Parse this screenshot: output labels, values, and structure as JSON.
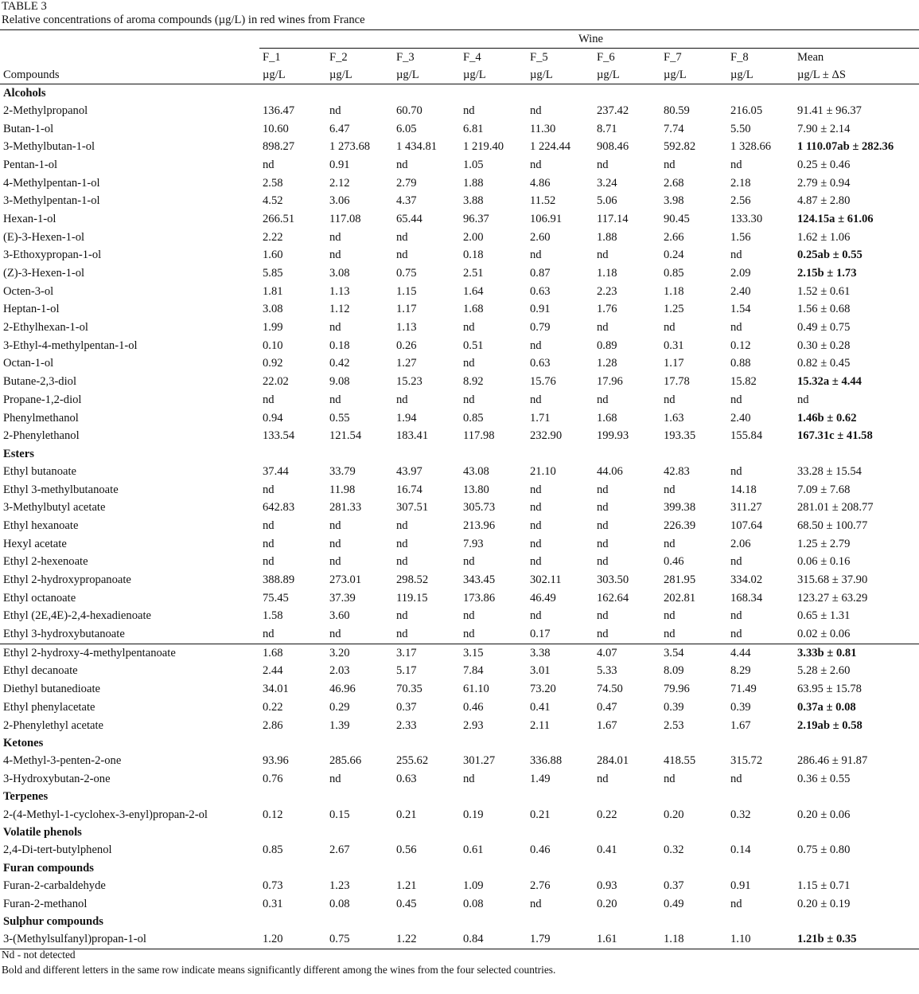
{
  "caption": {
    "label": "TABLE 3",
    "title": "Relative concentrations of aroma compounds (µg/L) in red wines from France"
  },
  "header": {
    "group_label": "Wine",
    "compounds_label": "Compounds",
    "columns": [
      "F_1",
      "F_2",
      "F_3",
      "F_4",
      "F_5",
      "F_6",
      "F_7",
      "F_8",
      "Mean"
    ],
    "units": [
      "µg/L",
      "µg/L",
      "µg/L",
      "µg/L",
      "µg/L",
      "µg/L",
      "µg/L",
      "µg/L",
      "µg/L ± ΔS"
    ]
  },
  "groups": [
    {
      "name": "Alcohols",
      "rows": [
        {
          "compound": "2-Methylpropanol",
          "values": [
            "136.47",
            "nd",
            "60.70",
            "nd",
            "nd",
            "237.42",
            "80.59",
            "216.05"
          ],
          "mean": "91.41 ± 96.37",
          "bold": false
        },
        {
          "compound": "Butan-1-ol",
          "values": [
            "10.60",
            "6.47",
            "6.05",
            "6.81",
            "11.30",
            "8.71",
            "7.74",
            "5.50"
          ],
          "mean": "7.90 ± 2.14",
          "bold": false
        },
        {
          "compound": "3-Methylbutan-1-ol",
          "values": [
            "898.27",
            "1 273.68",
            "1 434.81",
            "1 219.40",
            "1 224.44",
            "908.46",
            "592.82",
            "1 328.66"
          ],
          "mean": "1 110.07ab ± 282.36",
          "bold": true
        },
        {
          "compound": "Pentan-1-ol",
          "values": [
            "nd",
            "0.91",
            "nd",
            "1.05",
            "nd",
            "nd",
            "nd",
            "nd"
          ],
          "mean": "0.25 ± 0.46",
          "bold": false
        },
        {
          "compound": "4-Methylpentan-1-ol",
          "values": [
            "2.58",
            "2.12",
            "2.79",
            "1.88",
            "4.86",
            "3.24",
            "2.68",
            "2.18"
          ],
          "mean": "2.79 ± 0.94",
          "bold": false
        },
        {
          "compound": "3-Methylpentan-1-ol",
          "values": [
            "4.52",
            "3.06",
            "4.37",
            "3.88",
            "11.52",
            "5.06",
            "3.98",
            "2.56"
          ],
          "mean": "4.87 ± 2.80",
          "bold": false
        },
        {
          "compound": "Hexan-1-ol",
          "values": [
            "266.51",
            "117.08",
            "65.44",
            "96.37",
            "106.91",
            "117.14",
            "90.45",
            "133.30"
          ],
          "mean": "124.15a ± 61.06",
          "bold": true
        },
        {
          "compound": "(E)-3-Hexen-1-ol",
          "values": [
            "2.22",
            "nd",
            "nd",
            "2.00",
            "2.60",
            "1.88",
            "2.66",
            "1.56"
          ],
          "mean": "1.62 ± 1.06",
          "bold": false
        },
        {
          "compound": "3-Ethoxypropan-1-ol",
          "values": [
            "1.60",
            "nd",
            "nd",
            "0.18",
            "nd",
            "nd",
            "0.24",
            "nd"
          ],
          "mean": "0.25ab ± 0.55",
          "bold": true
        },
        {
          "compound": "(Z)-3-Hexen-1-ol",
          "values": [
            "5.85",
            "3.08",
            "0.75",
            "2.51",
            "0.87",
            "1.18",
            "0.85",
            "2.09"
          ],
          "mean": "2.15b ± 1.73",
          "bold": true
        },
        {
          "compound": "Octen-3-ol",
          "values": [
            "1.81",
            "1.13",
            "1.15",
            "1.64",
            "0.63",
            "2.23",
            "1.18",
            "2.40"
          ],
          "mean": "1.52 ± 0.61",
          "bold": false
        },
        {
          "compound": "Heptan-1-ol",
          "values": [
            "3.08",
            "1.12",
            "1.17",
            "1.68",
            "0.91",
            "1.76",
            "1.25",
            "1.54"
          ],
          "mean": "1.56 ± 0.68",
          "bold": false
        },
        {
          "compound": "2-Ethylhexan-1-ol",
          "values": [
            "1.99",
            "nd",
            "1.13",
            "nd",
            "0.79",
            "nd",
            "nd",
            "nd"
          ],
          "mean": "0.49 ± 0.75",
          "bold": false
        },
        {
          "compound": "3-Ethyl-4-methylpentan-1-ol",
          "values": [
            "0.10",
            "0.18",
            "0.26",
            "0.51",
            "nd",
            "0.89",
            "0.31",
            "0.12"
          ],
          "mean": "0.30 ± 0.28",
          "bold": false
        },
        {
          "compound": "Octan-1-ol",
          "values": [
            "0.92",
            "0.42",
            "1.27",
            "nd",
            "0.63",
            "1.28",
            "1.17",
            "0.88"
          ],
          "mean": "0.82 ± 0.45",
          "bold": false
        },
        {
          "compound": "Butane-2,3-diol",
          "values": [
            "22.02",
            "9.08",
            "15.23",
            "8.92",
            "15.76",
            "17.96",
            "17.78",
            "15.82"
          ],
          "mean": "15.32a ± 4.44",
          "bold": true
        },
        {
          "compound": "Propane-1,2-diol",
          "values": [
            "nd",
            "nd",
            "nd",
            "nd",
            "nd",
            "nd",
            "nd",
            "nd"
          ],
          "mean": "nd",
          "bold": false
        },
        {
          "compound": "Phenylmethanol",
          "values": [
            "0.94",
            "0.55",
            "1.94",
            "0.85",
            "1.71",
            "1.68",
            "1.63",
            "2.40"
          ],
          "mean": "1.46b ± 0.62",
          "bold": true
        },
        {
          "compound": "2-Phenylethanol",
          "values": [
            "133.54",
            "121.54",
            "183.41",
            "117.98",
            "232.90",
            "199.93",
            "193.35",
            "155.84"
          ],
          "mean": "167.31c ± 41.58",
          "bold": true
        }
      ]
    },
    {
      "name": "Esters",
      "rows": [
        {
          "compound": "Ethyl butanoate",
          "values": [
            "37.44",
            "33.79",
            "43.97",
            "43.08",
            "21.10",
            "44.06",
            "42.83",
            "nd"
          ],
          "mean": "33.28 ± 15.54",
          "bold": false
        },
        {
          "compound": "Ethyl 3-methylbutanoate",
          "values": [
            "nd",
            "11.98",
            "16.74",
            "13.80",
            "nd",
            "nd",
            "nd",
            "14.18"
          ],
          "mean": "7.09 ± 7.68",
          "bold": false
        },
        {
          "compound": "3-Methylbutyl acetate",
          "values": [
            "642.83",
            "281.33",
            "307.51",
            "305.73",
            "nd",
            "nd",
            "399.38",
            "311.27"
          ],
          "mean": "281.01 ± 208.77",
          "bold": false
        },
        {
          "compound": "Ethyl hexanoate",
          "values": [
            "nd",
            "nd",
            "nd",
            "213.96",
            "nd",
            "nd",
            "226.39",
            "107.64"
          ],
          "mean": "68.50 ± 100.77",
          "bold": false
        },
        {
          "compound": "Hexyl acetate",
          "values": [
            "nd",
            "nd",
            "nd",
            "7.93",
            "nd",
            "nd",
            "nd",
            "2.06"
          ],
          "mean": "1.25 ± 2.79",
          "bold": false
        },
        {
          "compound": "Ethyl 2-hexenoate",
          "values": [
            "nd",
            "nd",
            "nd",
            "nd",
            "nd",
            "nd",
            "0.46",
            "nd"
          ],
          "mean": "0.06 ± 0.16",
          "bold": false
        },
        {
          "compound": "Ethyl 2-hydroxypropanoate",
          "values": [
            "388.89",
            "273.01",
            "298.52",
            "343.45",
            "302.11",
            "303.50",
            "281.95",
            "334.02"
          ],
          "mean": "315.68 ± 37.90",
          "bold": false
        },
        {
          "compound": "Ethyl octanoate",
          "values": [
            "75.45",
            "37.39",
            "119.15",
            "173.86",
            "46.49",
            "162.64",
            "202.81",
            "168.34"
          ],
          "mean": "123.27 ± 63.29",
          "bold": false
        },
        {
          "compound": "Ethyl (2E,4E)-2,4-hexadienoate",
          "values": [
            "1.58",
            "3.60",
            "nd",
            "nd",
            "nd",
            "nd",
            "nd",
            "nd"
          ],
          "mean": "0.65 ± 1.31",
          "bold": false
        },
        {
          "compound": "Ethyl 3-hydroxybutanoate",
          "values": [
            "nd",
            "nd",
            "nd",
            "nd",
            "0.17",
            "nd",
            "nd",
            "nd"
          ],
          "mean": "0.02 ± 0.06",
          "bold": false
        },
        {
          "compound": "Ethyl 2-hydroxy-4-methylpentanoate",
          "values": [
            "1.68",
            "3.20",
            "3.17",
            "3.15",
            "3.38",
            "4.07",
            "3.54",
            "4.44"
          ],
          "mean": "3.33b ± 0.81",
          "bold": true,
          "sep": true
        },
        {
          "compound": "Ethyl decanoate",
          "values": [
            "2.44",
            "2.03",
            "5.17",
            "7.84",
            "3.01",
            "5.33",
            "8.09",
            "8.29"
          ],
          "mean": "5.28 ± 2.60",
          "bold": false
        },
        {
          "compound": "Diethyl butanedioate",
          "values": [
            "34.01",
            "46.96",
            "70.35",
            "61.10",
            "73.20",
            "74.50",
            "79.96",
            "71.49"
          ],
          "mean": "63.95 ± 15.78",
          "bold": false
        },
        {
          "compound": "Ethyl phenylacetate",
          "values": [
            "0.22",
            "0.29",
            "0.37",
            "0.46",
            "0.41",
            "0.47",
            "0.39",
            "0.39"
          ],
          "mean": "0.37a ± 0.08",
          "bold": true
        },
        {
          "compound": "2-Phenylethyl acetate",
          "values": [
            "2.86",
            "1.39",
            "2.33",
            "2.93",
            "2.11",
            "1.67",
            "2.53",
            "1.67"
          ],
          "mean": "2.19ab ± 0.58",
          "bold": true
        }
      ]
    },
    {
      "name": "Ketones",
      "rows": [
        {
          "compound": "4-Methyl-3-penten-2-one",
          "values": [
            "93.96",
            "285.66",
            "255.62",
            "301.27",
            "336.88",
            "284.01",
            "418.55",
            "315.72"
          ],
          "mean": "286.46 ± 91.87",
          "bold": false
        },
        {
          "compound": "3-Hydroxybutan-2-one",
          "values": [
            "0.76",
            "nd",
            "0.63",
            "nd",
            "1.49",
            "nd",
            "nd",
            "nd"
          ],
          "mean": "0.36 ± 0.55",
          "bold": false
        }
      ]
    },
    {
      "name": "Terpenes",
      "rows": [
        {
          "compound": "2-(4-Methyl-1-cyclohex-3-enyl)propan-2-ol",
          "values": [
            "0.12",
            "0.15",
            "0.21",
            "0.19",
            "0.21",
            "0.22",
            "0.20",
            "0.32"
          ],
          "mean": "0.20 ± 0.06",
          "bold": false
        }
      ]
    },
    {
      "name": "Volatile phenols",
      "rows": [
        {
          "compound": "2,4-Di-tert-butylphenol",
          "values": [
            "0.85",
            "2.67",
            "0.56",
            "0.61",
            "0.46",
            "0.41",
            "0.32",
            "0.14"
          ],
          "mean": "0.75 ± 0.80",
          "bold": false
        }
      ]
    },
    {
      "name": "Furan compounds",
      "rows": [
        {
          "compound": "Furan-2-carbaldehyde",
          "values": [
            "0.73",
            "1.23",
            "1.21",
            "1.09",
            "2.76",
            "0.93",
            "0.37",
            "0.91"
          ],
          "mean": "1.15 ± 0.71",
          "bold": false
        },
        {
          "compound": "Furan-2-methanol",
          "values": [
            "0.31",
            "0.08",
            "0.45",
            "0.08",
            "nd",
            "0.20",
            "0.49",
            "nd"
          ],
          "mean": "0.20 ± 0.19",
          "bold": false
        }
      ]
    },
    {
      "name": "Sulphur compounds",
      "rows": [
        {
          "compound": "3-(Methylsulfanyl)propan-1-ol",
          "values": [
            "1.20",
            "0.75",
            "1.22",
            "0.84",
            "1.79",
            "1.61",
            "1.18",
            "1.10"
          ],
          "mean": "1.21b ± 0.35",
          "bold": true
        }
      ]
    }
  ],
  "footnotes": [
    "Nd - not detected",
    "Bold and different letters in the same row indicate means significantly different among the wines from the four selected countries."
  ]
}
